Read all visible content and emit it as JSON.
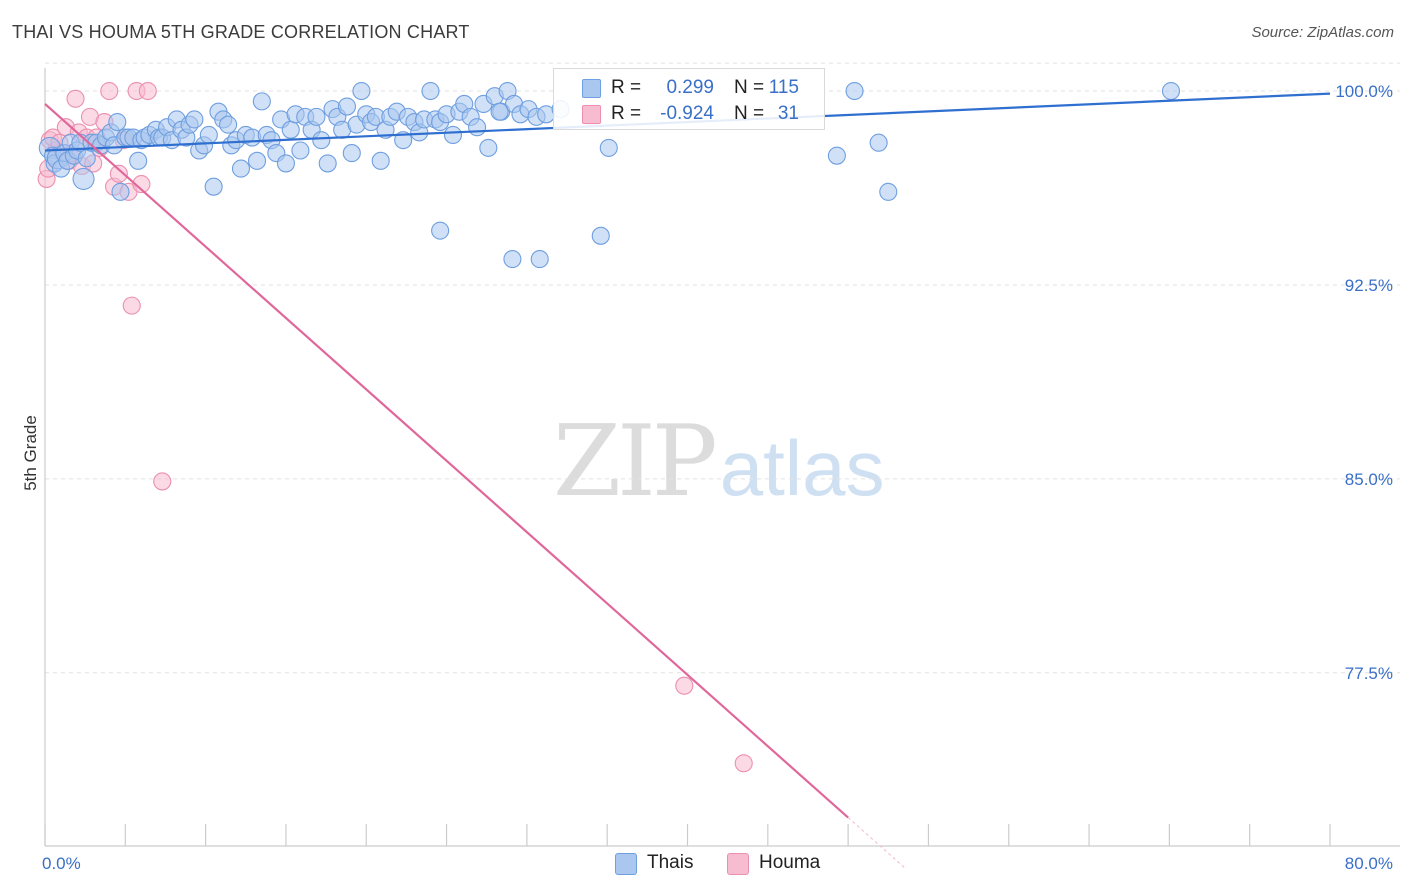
{
  "header": {
    "title": "THAI VS HOUMA 5TH GRADE CORRELATION CHART",
    "source": "Source: ZipAtlas.com"
  },
  "watermark": {
    "zip": "ZIP",
    "atlas": "atlas"
  },
  "legend_top": [
    {
      "r_label": "R =",
      "r_value": "0.299",
      "n_label": "N =",
      "n_value": "115"
    },
    {
      "r_label": "R =",
      "r_value": "-0.924",
      "n_label": "N =",
      "n_value": "31"
    }
  ],
  "legend_bottom": {
    "thais": "Thais",
    "houma": "Houma"
  },
  "colors": {
    "thais_fill": "#a9c7ef",
    "thais_stroke": "#6f9fe0",
    "thais_line": "#2f6fd0",
    "houma_fill": "#f7bcd0",
    "houma_stroke": "#ec8fb0",
    "houma_line": "#e0679a",
    "tick_text": "#3a6fc8",
    "grid": "#e2e2e2"
  },
  "chart_data": {
    "type": "scatter",
    "title": "THAI VS HOUMA 5TH GRADE CORRELATION CHART",
    "xlabel": "",
    "ylabel": "5th Grade",
    "xlim": [
      0,
      80
    ],
    "ylim": [
      70.8,
      101.2
    ],
    "x_tick_labels": [
      "0.0%",
      "80.0%"
    ],
    "y_ticks": [
      77.5,
      85.0,
      92.5,
      100.0
    ],
    "y_tick_labels": [
      "77.5%",
      "85.0%",
      "92.5%",
      "100.0%"
    ],
    "grid": true,
    "legend_position": "top-center",
    "series": [
      {
        "name": "Thais",
        "color": "#a9c7ef",
        "trend": {
          "x": [
            0,
            80
          ],
          "y": [
            97.7,
            99.9
          ]
        },
        "points": [
          [
            0.3,
            97.8
          ],
          [
            0.5,
            97.5
          ],
          [
            0.6,
            97.2
          ],
          [
            0.8,
            97.4
          ],
          [
            1.0,
            97.0
          ],
          [
            1.2,
            97.6
          ],
          [
            1.4,
            97.3
          ],
          [
            1.6,
            98.0
          ],
          [
            1.8,
            97.5
          ],
          [
            2.0,
            97.7
          ],
          [
            2.2,
            98.0
          ],
          [
            2.4,
            96.6
          ],
          [
            2.6,
            97.4
          ],
          [
            2.9,
            98.0
          ],
          [
            3.2,
            98.0
          ],
          [
            3.5,
            97.9
          ],
          [
            3.8,
            98.2
          ],
          [
            4.1,
            98.4
          ],
          [
            4.3,
            97.9
          ],
          [
            4.5,
            98.8
          ],
          [
            4.7,
            96.1
          ],
          [
            5.0,
            98.2
          ],
          [
            5.2,
            98.2
          ],
          [
            5.5,
            98.2
          ],
          [
            5.8,
            97.3
          ],
          [
            6.0,
            98.1
          ],
          [
            6.2,
            98.2
          ],
          [
            6.5,
            98.3
          ],
          [
            6.9,
            98.5
          ],
          [
            7.1,
            98.2
          ],
          [
            7.3,
            98.2
          ],
          [
            7.6,
            98.6
          ],
          [
            7.9,
            98.1
          ],
          [
            8.2,
            98.9
          ],
          [
            8.5,
            98.5
          ],
          [
            8.8,
            98.2
          ],
          [
            9.0,
            98.7
          ],
          [
            9.3,
            98.9
          ],
          [
            9.6,
            97.7
          ],
          [
            9.9,
            97.9
          ],
          [
            10.2,
            98.3
          ],
          [
            10.5,
            96.3
          ],
          [
            10.8,
            99.2
          ],
          [
            11.1,
            98.9
          ],
          [
            11.4,
            98.7
          ],
          [
            11.6,
            97.9
          ],
          [
            11.9,
            98.1
          ],
          [
            12.2,
            97.0
          ],
          [
            12.5,
            98.3
          ],
          [
            12.9,
            98.2
          ],
          [
            13.2,
            97.3
          ],
          [
            13.5,
            99.6
          ],
          [
            13.8,
            98.3
          ],
          [
            14.1,
            98.1
          ],
          [
            14.4,
            97.6
          ],
          [
            14.7,
            98.9
          ],
          [
            15.0,
            97.2
          ],
          [
            15.3,
            98.5
          ],
          [
            15.6,
            99.1
          ],
          [
            15.9,
            97.7
          ],
          [
            16.2,
            99.0
          ],
          [
            16.6,
            98.5
          ],
          [
            16.9,
            99.0
          ],
          [
            17.2,
            98.1
          ],
          [
            17.6,
            97.2
          ],
          [
            17.9,
            99.3
          ],
          [
            18.2,
            99.0
          ],
          [
            18.5,
            98.5
          ],
          [
            18.8,
            99.4
          ],
          [
            19.1,
            97.6
          ],
          [
            19.4,
            98.7
          ],
          [
            19.7,
            100.0
          ],
          [
            20.0,
            99.1
          ],
          [
            20.3,
            98.8
          ],
          [
            20.6,
            99.0
          ],
          [
            20.9,
            97.3
          ],
          [
            21.2,
            98.5
          ],
          [
            21.5,
            99.0
          ],
          [
            21.9,
            99.2
          ],
          [
            22.3,
            98.1
          ],
          [
            22.6,
            99.0
          ],
          [
            23.0,
            98.8
          ],
          [
            23.3,
            98.4
          ],
          [
            23.6,
            98.9
          ],
          [
            24.0,
            100.0
          ],
          [
            24.3,
            98.9
          ],
          [
            24.6,
            98.8
          ],
          [
            25.0,
            99.1
          ],
          [
            25.4,
            98.3
          ],
          [
            25.8,
            99.2
          ],
          [
            26.1,
            99.5
          ],
          [
            26.5,
            99.0
          ],
          [
            26.9,
            98.6
          ],
          [
            27.3,
            99.5
          ],
          [
            27.6,
            97.8
          ],
          [
            28.0,
            99.8
          ],
          [
            28.4,
            99.2
          ],
          [
            28.8,
            100.0
          ],
          [
            29.2,
            99.5
          ],
          [
            29.6,
            99.1
          ],
          [
            30.1,
            99.3
          ],
          [
            30.6,
            99.0
          ],
          [
            31.2,
            99.1
          ],
          [
            49.3,
            97.5
          ],
          [
            50.4,
            100.0
          ],
          [
            51.9,
            98.0
          ],
          [
            52.5,
            96.1
          ],
          [
            70.1,
            100.0
          ],
          [
            24.6,
            94.6
          ],
          [
            29.1,
            93.5
          ],
          [
            30.8,
            93.5
          ],
          [
            34.6,
            94.4
          ],
          [
            35.1,
            97.8
          ],
          [
            28.3,
            99.2
          ],
          [
            32.1,
            99.3
          ]
        ]
      },
      {
        "name": "Houma",
        "color": "#f7bcd0",
        "trend": {
          "x": [
            0,
            50
          ],
          "y": [
            99.5,
            71.9
          ]
        },
        "points": [
          [
            0.1,
            96.6
          ],
          [
            0.2,
            97.0
          ],
          [
            0.3,
            98.1
          ],
          [
            0.5,
            98.2
          ],
          [
            0.7,
            97.7
          ],
          [
            0.9,
            98.0
          ],
          [
            1.1,
            97.6
          ],
          [
            1.3,
            98.6
          ],
          [
            1.5,
            97.3
          ],
          [
            1.7,
            97.6
          ],
          [
            1.9,
            99.7
          ],
          [
            2.1,
            98.4
          ],
          [
            2.3,
            97.1
          ],
          [
            2.6,
            98.2
          ],
          [
            2.8,
            99.0
          ],
          [
            3.0,
            97.2
          ],
          [
            3.2,
            98.2
          ],
          [
            3.4,
            97.8
          ],
          [
            3.7,
            98.8
          ],
          [
            4.0,
            100.0
          ],
          [
            4.3,
            96.3
          ],
          [
            4.6,
            96.8
          ],
          [
            4.9,
            98.1
          ],
          [
            5.2,
            96.1
          ],
          [
            5.4,
            91.7
          ],
          [
            5.7,
            100.0
          ],
          [
            6.0,
            96.4
          ],
          [
            6.4,
            100.0
          ],
          [
            7.3,
            84.9
          ],
          [
            39.8,
            77.0
          ],
          [
            43.5,
            74.0
          ]
        ]
      }
    ]
  }
}
